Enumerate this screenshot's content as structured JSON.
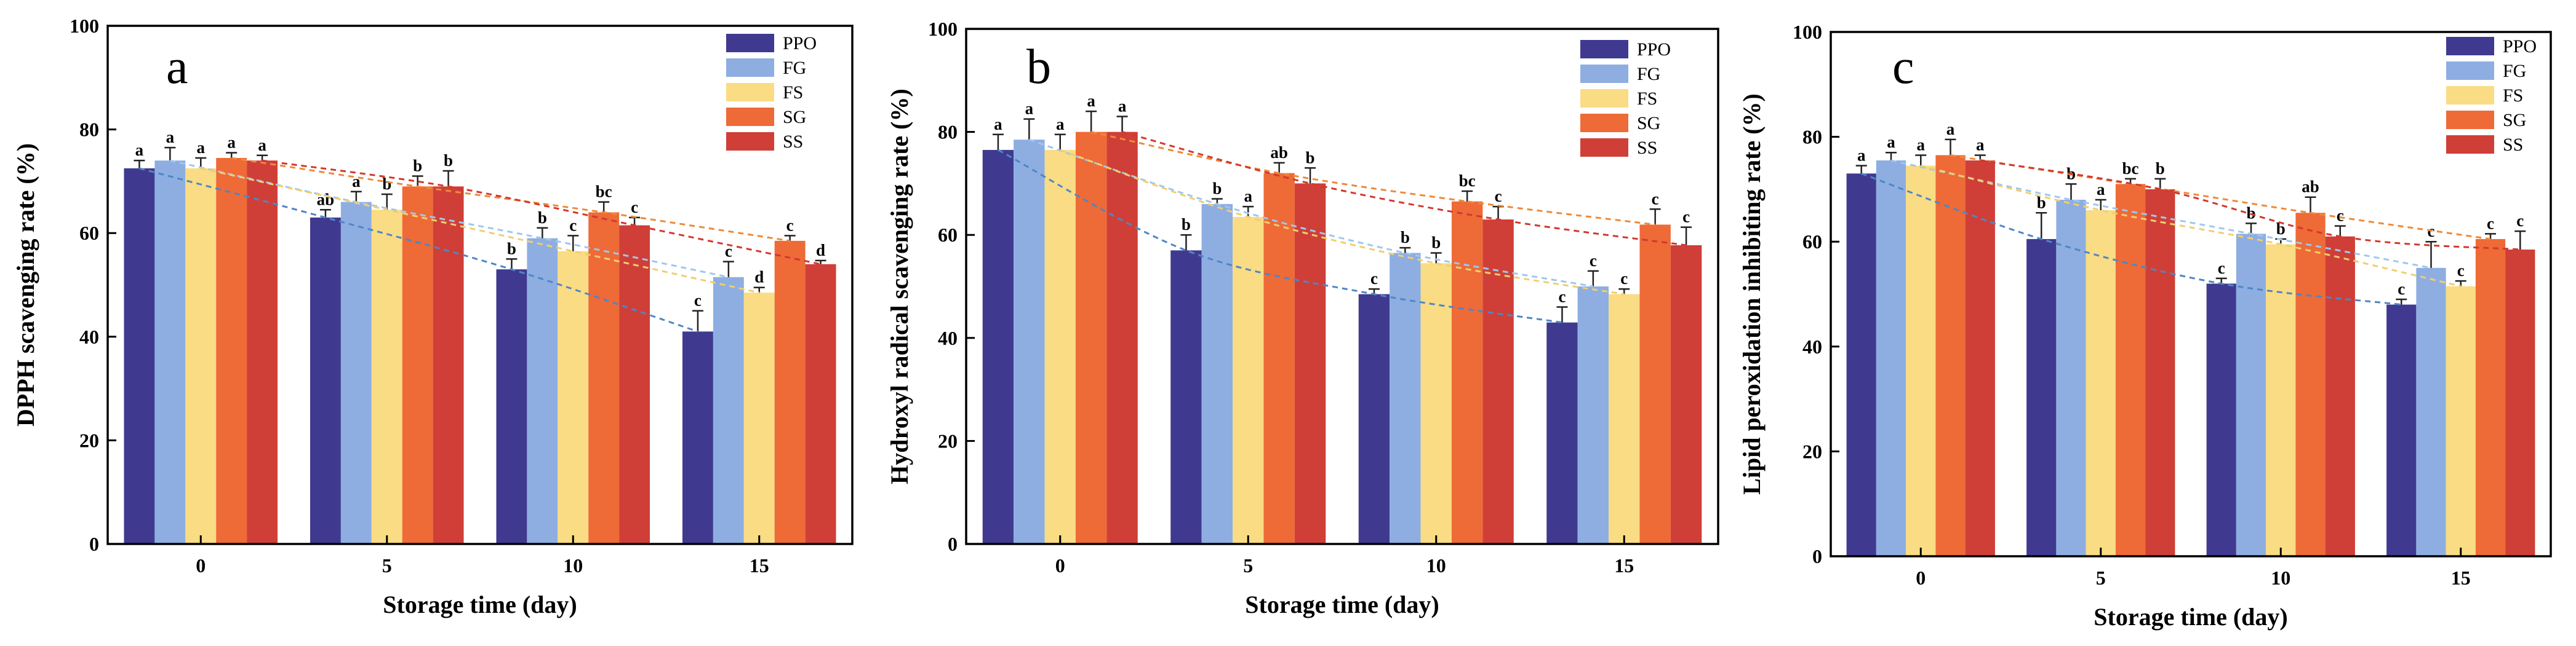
{
  "chart_data": [
    {
      "type": "bar",
      "panel_label": "a",
      "xlabel": "Storage time (day)",
      "ylabel": "DPPH scavenging rate (%)",
      "ylim": [
        0,
        100
      ],
      "yticks": [
        "0",
        "20",
        "40",
        "60",
        "80",
        "100"
      ],
      "categories": [
        "0",
        "5",
        "10",
        "15"
      ],
      "legend_position": "top-right",
      "series": [
        {
          "name": "PPO",
          "values": [
            72.5,
            63,
            53,
            41
          ],
          "errors": [
            1.5,
            1.5,
            2,
            4
          ],
          "sig": [
            "a",
            "ab",
            "b",
            "c"
          ]
        },
        {
          "name": "FG",
          "values": [
            74,
            66,
            59,
            51.5
          ],
          "errors": [
            2.5,
            2,
            2,
            3
          ],
          "sig": [
            "a",
            "a",
            "b",
            "c"
          ]
        },
        {
          "name": "FS",
          "values": [
            72.5,
            64.5,
            56.5,
            48.5
          ],
          "errors": [
            2,
            3,
            3,
            1
          ],
          "sig": [
            "a",
            "b",
            "c",
            "d"
          ]
        },
        {
          "name": "SG",
          "values": [
            74.5,
            69,
            64,
            58.5
          ],
          "errors": [
            1,
            2,
            2,
            1
          ],
          "sig": [
            "a",
            "b",
            "bc",
            "c"
          ]
        },
        {
          "name": "SS",
          "values": [
            74,
            69,
            61.5,
            54
          ],
          "errors": [
            1,
            3,
            1.5,
            0.7
          ],
          "sig": [
            "a",
            "b",
            "c",
            "d"
          ]
        }
      ]
    },
    {
      "type": "bar",
      "panel_label": "b",
      "xlabel": "Storage time (day)",
      "ylabel": "Hydroxyl radical scavenging rate (%)",
      "ylim": [
        0,
        100
      ],
      "yticks": [
        "0",
        "20",
        "40",
        "60",
        "80",
        "100"
      ],
      "categories": [
        "0",
        "5",
        "10",
        "15"
      ],
      "legend_position": "top-right",
      "series": [
        {
          "name": "PPO",
          "values": [
            76.5,
            57,
            48.5,
            43
          ],
          "errors": [
            3,
            3,
            1,
            3
          ],
          "sig": [
            "a",
            "b",
            "c",
            "c"
          ]
        },
        {
          "name": "FG",
          "values": [
            78.5,
            66,
            56.5,
            50
          ],
          "errors": [
            4,
            1,
            1,
            3
          ],
          "sig": [
            "a",
            "b",
            "b",
            "c"
          ]
        },
        {
          "name": "FS",
          "values": [
            76.5,
            63.5,
            54.5,
            48.5
          ],
          "errors": [
            3,
            2,
            2,
            1
          ],
          "sig": [
            "a",
            "a",
            "b",
            "c"
          ]
        },
        {
          "name": "SG",
          "values": [
            80,
            72,
            66.5,
            62
          ],
          "errors": [
            4,
            2,
            2,
            3
          ],
          "sig": [
            "a",
            "ab",
            "bc",
            "c"
          ]
        },
        {
          "name": "SS",
          "values": [
            80,
            70,
            63,
            58
          ],
          "errors": [
            3,
            3,
            2.5,
            3.5
          ],
          "sig": [
            "a",
            "b",
            "c",
            "c"
          ]
        }
      ]
    },
    {
      "type": "bar",
      "panel_label": "c",
      "xlabel": "Storage time (day)",
      "ylabel": "Lipid peroxidation inhibiting rate (%)",
      "ylim": [
        0,
        100
      ],
      "yticks": [
        "0",
        "20",
        "40",
        "60",
        "80",
        "100"
      ],
      "categories": [
        "0",
        "5",
        "10",
        "15"
      ],
      "legend_position": "top-right",
      "series": [
        {
          "name": "PPO",
          "values": [
            73,
            60.5,
            52,
            48
          ],
          "errors": [
            1.5,
            5,
            1,
            1
          ],
          "sig": [
            "a",
            "b",
            "c",
            "c"
          ]
        },
        {
          "name": "FG",
          "values": [
            75.5,
            68,
            61.5,
            55
          ],
          "errors": [
            1.5,
            3,
            2,
            5
          ],
          "sig": [
            "a",
            "b",
            "b",
            "c"
          ]
        },
        {
          "name": "FS",
          "values": [
            74.5,
            66,
            59.5,
            51.5
          ],
          "errors": [
            2,
            2,
            1,
            1
          ],
          "sig": [
            "a",
            "a",
            "b",
            "c"
          ]
        },
        {
          "name": "SG",
          "values": [
            76.5,
            71,
            65.5,
            60.5
          ],
          "errors": [
            3,
            1,
            3,
            1
          ],
          "sig": [
            "a",
            "bc",
            "ab",
            "c"
          ]
        },
        {
          "name": "SS",
          "values": [
            75.5,
            70,
            61,
            58.5
          ],
          "errors": [
            1,
            2,
            2,
            3.5
          ],
          "sig": [
            "a",
            "b",
            "c",
            "c"
          ]
        }
      ]
    }
  ],
  "colors": {
    "PPO": "#3f3a8f",
    "FG": "#8eaee2",
    "FS": "#f9dc84",
    "SG": "#ee6a37",
    "SS": "#cf3f37",
    "trend_PPO": "#4f86c6",
    "trend_FG": "#9ec7ef",
    "trend_FS": "#f1ce6e",
    "trend_SG": "#ee8a38",
    "trend_SS": "#d2382f"
  }
}
